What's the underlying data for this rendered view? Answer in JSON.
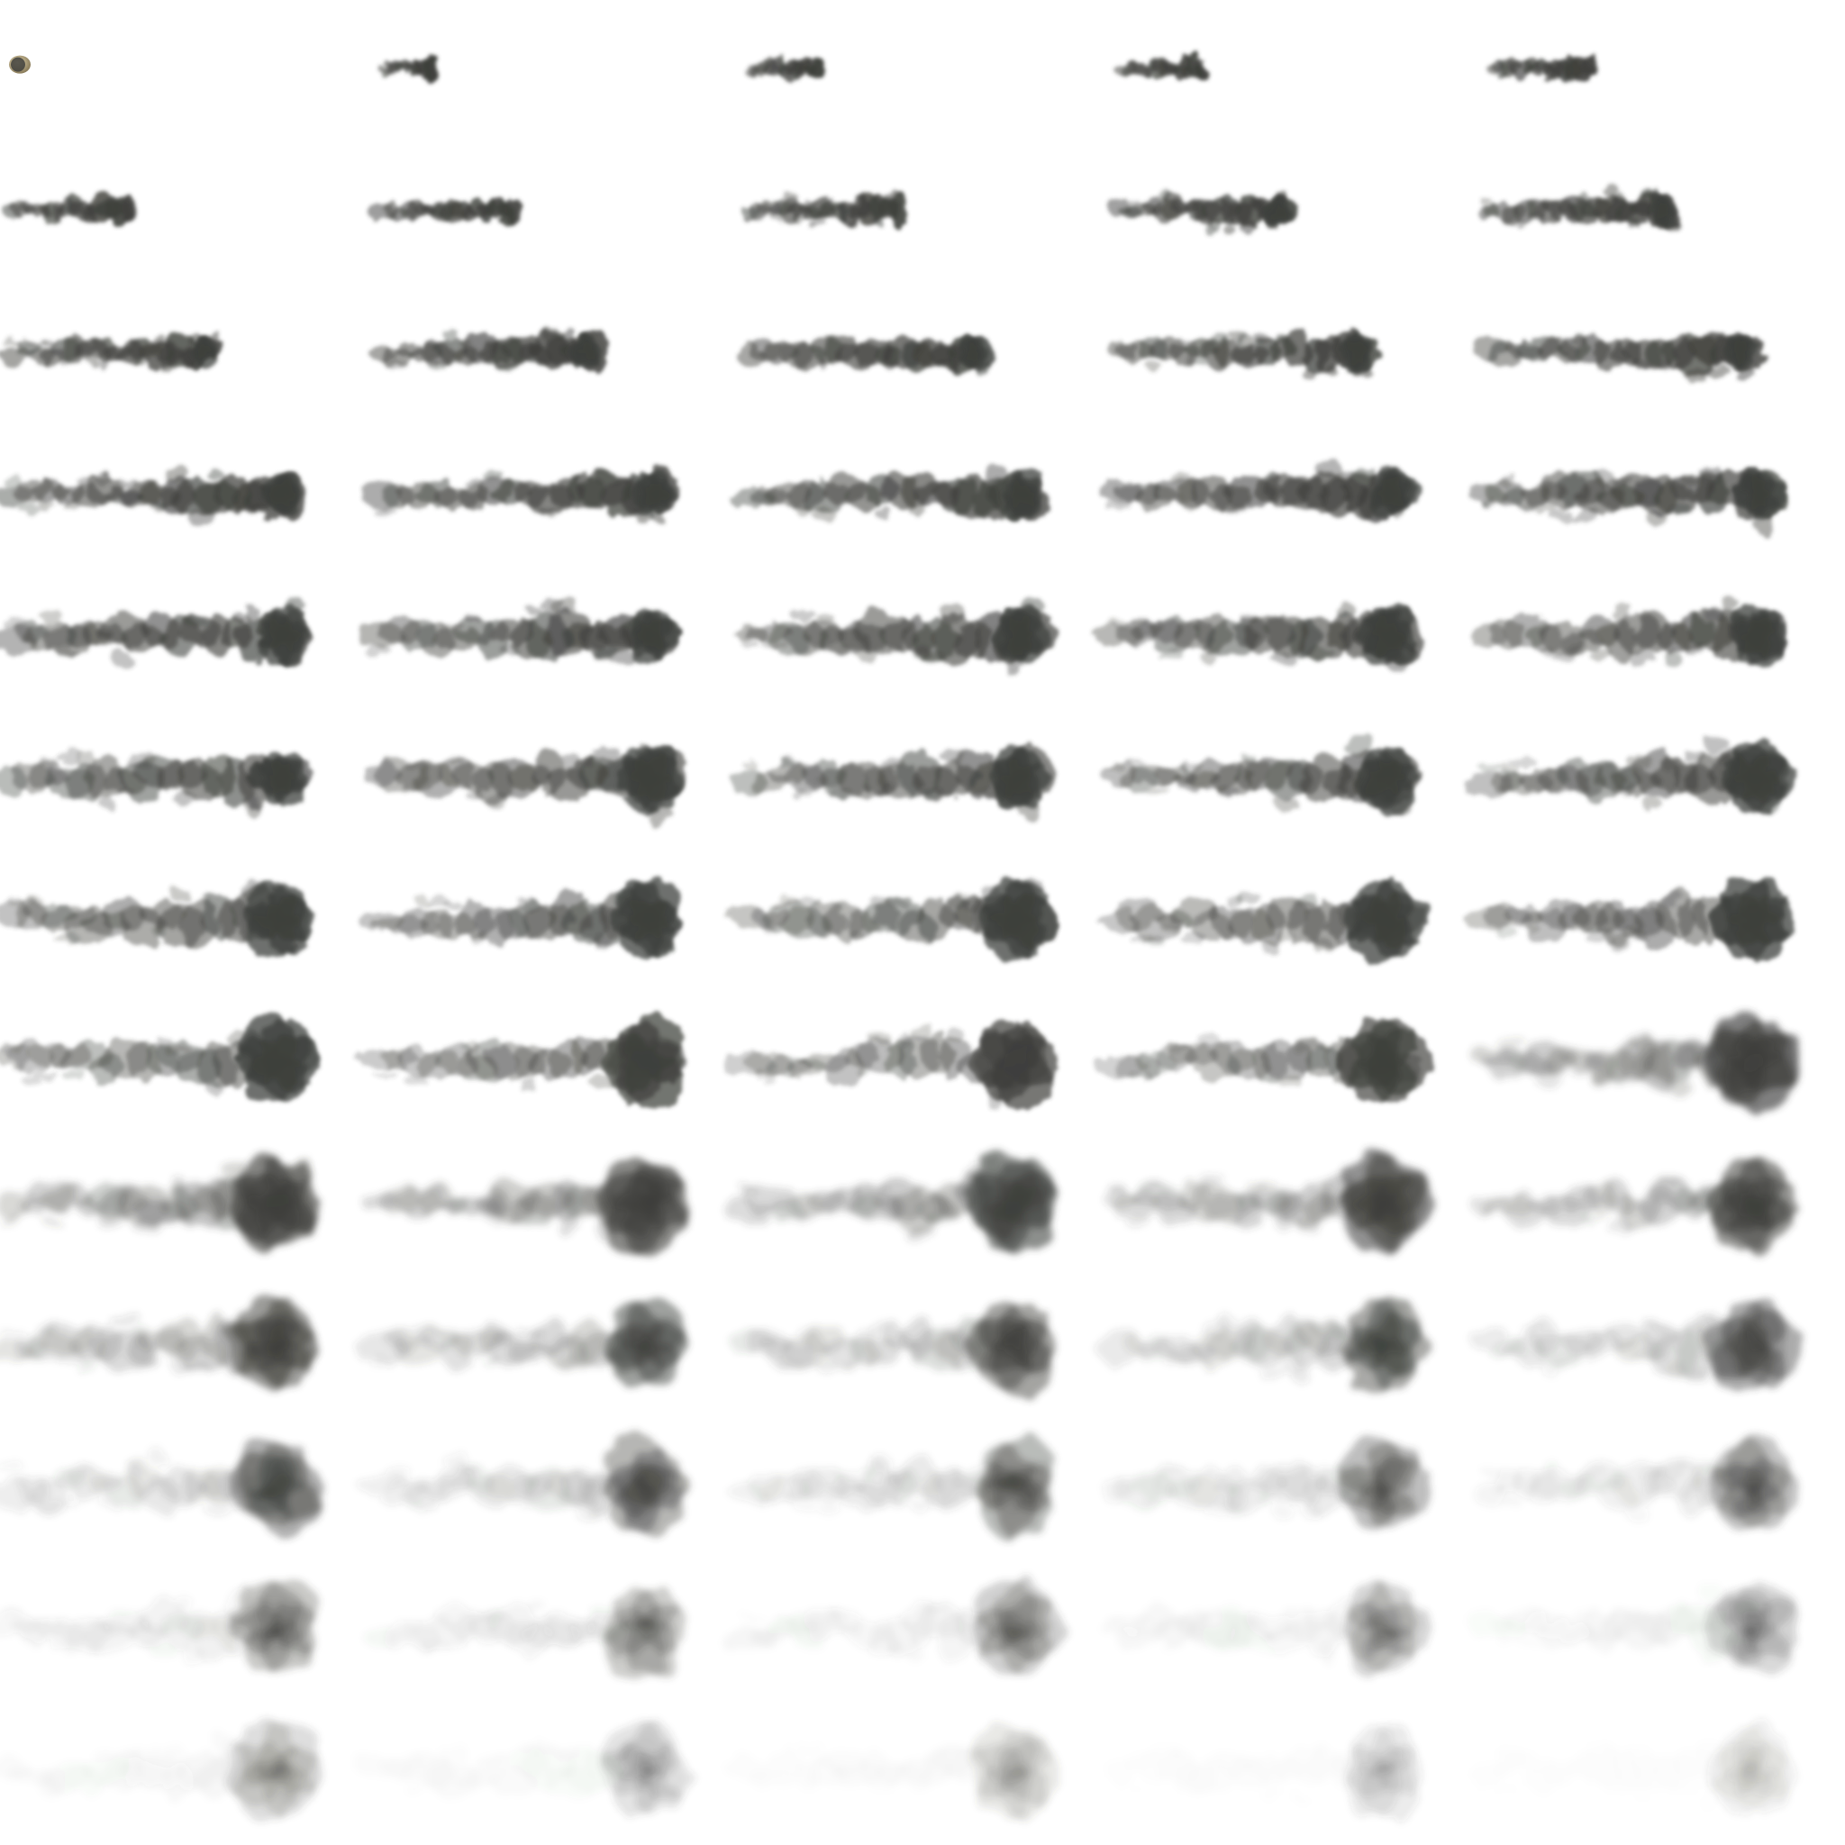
{
  "sprite_sheet": {
    "type": "smoke-trail-flipbook",
    "columns": 5,
    "rows": 13,
    "frame_count": 65,
    "background": "#ffffff",
    "smoke_color": "#3f403c",
    "ember_color": "#c9b98f",
    "animation": {
      "phases": [
        "spawn",
        "stretch",
        "billow",
        "dissipate"
      ]
    }
  }
}
